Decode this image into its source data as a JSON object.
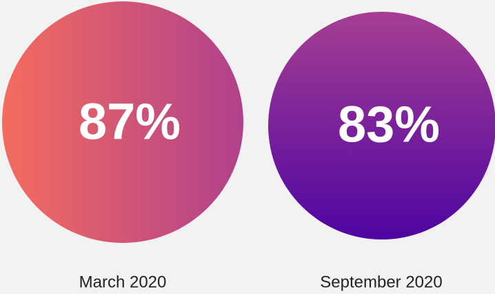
{
  "items": [
    {
      "value": "87%",
      "label": "March 2020"
    },
    {
      "value": "83%",
      "label": "September 2020"
    }
  ]
}
